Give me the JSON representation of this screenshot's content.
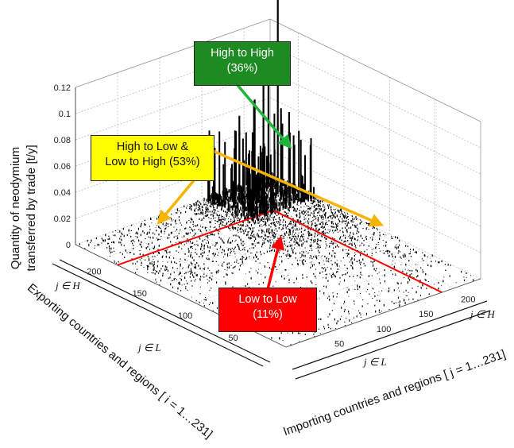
{
  "chart_data": {
    "type": "bar3d",
    "zlabel_line1": "Quantity of neodymium",
    "zlabel_line2": "transferred by trade [t/y]",
    "xlabel": "Exporting countries and regions [ i = 1…231]",
    "ylabel": "Importing countries and regions [ j = 1…231]",
    "z_ticks": [
      "0",
      "0.02",
      "0.04",
      "0.06",
      "0.08",
      "0.1",
      "0.12"
    ],
    "z_range": [
      0,
      0.12
    ],
    "i_ticks": [
      "50",
      "100",
      "150",
      "200"
    ],
    "j_ticks": [
      "50",
      "100",
      "150",
      "200"
    ],
    "i_range": [
      1,
      231
    ],
    "j_range": [
      1,
      231
    ],
    "group_labels": {
      "i_high": "j ∈ H",
      "i_low": "j ∈ L",
      "j_high": "j ∈ H",
      "j_low": "j ∈ L"
    },
    "boundary_index": 185,
    "boundary_color": "#ff0000",
    "grid": true,
    "categories": [
      {
        "name": "High to High",
        "share": "(36%)",
        "color": "#1e8a22",
        "text_color": "#ffffff",
        "arrow_color": "#1eb53a"
      },
      {
        "name": "High to Low & Low to High",
        "line1": "High to Low &",
        "line2": "Low to High (53%)",
        "color": "#ffff00",
        "text_color": "#111111",
        "arrow_color": "#f5b400"
      },
      {
        "name": "Low to Low",
        "share": "(11%)",
        "color": "#ff0000",
        "text_color": "#ffffff",
        "arrow_color": "#ff0000"
      }
    ],
    "notable_bars": [
      {
        "i": 205,
        "j": 212,
        "value": 0.155
      },
      {
        "i": 205,
        "j": 195,
        "value": 0.108
      },
      {
        "i": 218,
        "j": 215,
        "value": 0.09
      },
      {
        "i": 210,
        "j": 190,
        "value": 0.075
      },
      {
        "i": 195,
        "j": 205,
        "value": 0.07
      },
      {
        "i": 220,
        "j": 200,
        "value": 0.068
      },
      {
        "i": 200,
        "j": 220,
        "value": 0.062
      },
      {
        "i": 225,
        "j": 188,
        "value": 0.058
      },
      {
        "i": 190,
        "j": 210,
        "value": 0.052
      },
      {
        "i": 212,
        "j": 225,
        "value": 0.048
      }
    ]
  }
}
